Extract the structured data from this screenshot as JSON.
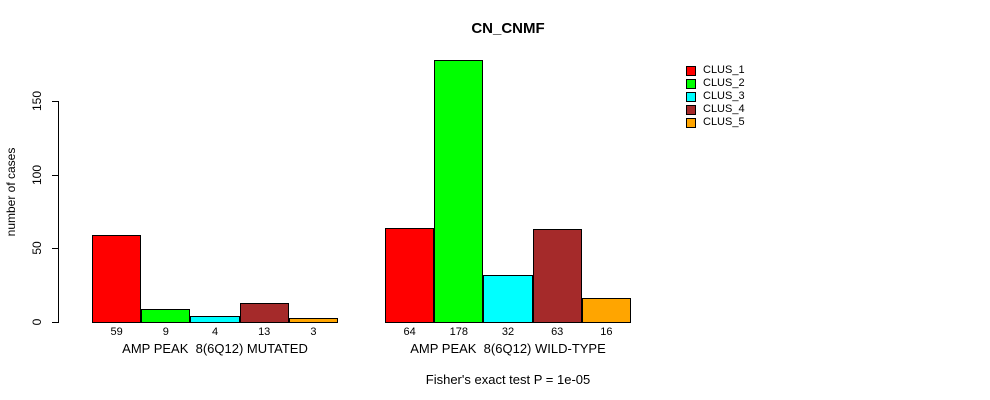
{
  "chart_data": {
    "type": "bar",
    "title": "CN_CNMF",
    "ylabel": "number of cases",
    "xlabel": "",
    "footnote": "Fisher's exact test P = 1e-05",
    "yticks": [
      0,
      50,
      100,
      150
    ],
    "ylim": [
      0,
      185
    ],
    "grid": false,
    "legend_position": "top-right",
    "series": [
      {
        "name": "CLUS_1",
        "color": "#FF0000"
      },
      {
        "name": "CLUS_2",
        "color": "#00FF00"
      },
      {
        "name": "CLUS_3",
        "color": "#00FFFF"
      },
      {
        "name": "CLUS_4",
        "color": "#A52A2A"
      },
      {
        "name": "CLUS_5",
        "color": "#FFA500"
      }
    ],
    "groups": [
      {
        "label": "AMP PEAK  8(6Q12) MUTATED",
        "values": [
          59,
          9,
          4,
          13,
          3
        ]
      },
      {
        "label": "AMP PEAK  8(6Q12) WILD-TYPE",
        "values": [
          64,
          178,
          32,
          63,
          16
        ]
      }
    ],
    "bar_border_color": "#000000",
    "text_color": "#000000",
    "background_color": "#FFFFFF"
  }
}
